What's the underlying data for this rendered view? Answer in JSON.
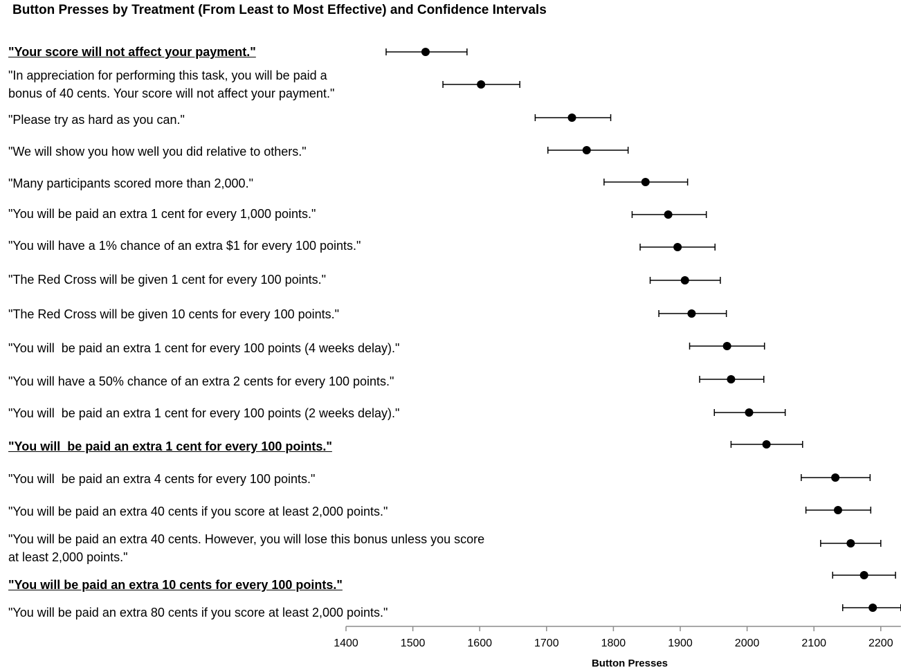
{
  "chart_data": {
    "type": "scatter",
    "title": "Button Presses by Treatment (From Least to Most Effective) and Confidence Intervals",
    "xlabel": "Button Presses",
    "xlim": [
      1400,
      2230
    ],
    "xticks": [
      "1400",
      "1500",
      "1600",
      "1700",
      "1800",
      "1900",
      "2000",
      "2100",
      "2200"
    ],
    "grid": false,
    "error_bars": true,
    "points": [
      {
        "label": "\"Your score will not affect your payment.\"",
        "bold": true,
        "x": 1519,
        "lo": 1460,
        "hi": 1581
      },
      {
        "label": "\"In appreciation for performing this task, you will be paid a\nbonus of 40 cents. Your score will not affect your payment.\"",
        "bold": false,
        "x": 1602,
        "lo": 1545,
        "hi": 1660
      },
      {
        "label": "\"Please try as hard as you can.\"",
        "bold": false,
        "x": 1738,
        "lo": 1683,
        "hi": 1796
      },
      {
        "label": "\"We will show you how well you did relative to others.\"",
        "bold": false,
        "x": 1760,
        "lo": 1702,
        "hi": 1822
      },
      {
        "label": "\"Many participants scored more than 2,000.\"",
        "bold": false,
        "x": 1848,
        "lo": 1786,
        "hi": 1911
      },
      {
        "label": "\"You will be paid an extra 1 cent for every 1,000 points.\"",
        "bold": false,
        "x": 1882,
        "lo": 1828,
        "hi": 1939
      },
      {
        "label": "\"You will have a 1% chance of an extra $1 for every 100 points.\"",
        "bold": false,
        "x": 1896,
        "lo": 1840,
        "hi": 1952
      },
      {
        "label": "\"The Red Cross will be given 1 cent for every 100 points.\"",
        "bold": false,
        "x": 1907,
        "lo": 1855,
        "hi": 1960
      },
      {
        "label": "\"The Red Cross will be given 10 cents for every 100 points.\"",
        "bold": false,
        "x": 1917,
        "lo": 1868,
        "hi": 1969
      },
      {
        "label": "\"You will  be paid an extra 1 cent for every 100 points (4 weeks delay).\"",
        "bold": false,
        "x": 1970,
        "lo": 1914,
        "hi": 2026
      },
      {
        "label": "\"You will have a 50% chance of an extra 2 cents for every 100 points.\"",
        "bold": false,
        "x": 1976,
        "lo": 1929,
        "hi": 2025
      },
      {
        "label": "\"You will  be paid an extra 1 cent for every 100 points (2 weeks delay).\"",
        "bold": false,
        "x": 2003,
        "lo": 1951,
        "hi": 2057
      },
      {
        "label": "\"You will  be paid an extra 1 cent for every 100 points.\"",
        "bold": true,
        "x": 2029,
        "lo": 1976,
        "hi": 2083
      },
      {
        "label": "\"You will  be paid an extra 4 cents for every 100 points.\"",
        "bold": false,
        "x": 2132,
        "lo": 2081,
        "hi": 2184
      },
      {
        "label": "\"You will be paid an extra 40 cents if you score at least 2,000 points.\"",
        "bold": false,
        "x": 2136,
        "lo": 2088,
        "hi": 2185
      },
      {
        "label": "\"You will be paid an extra 40 cents. However, you will lose this bonus unless you score\nat least 2,000 points.\"",
        "bold": false,
        "x": 2155,
        "lo": 2110,
        "hi": 2200
      },
      {
        "label": "\"You will be paid an extra 10 cents for every 100 points.\"",
        "bold": true,
        "x": 2175,
        "lo": 2128,
        "hi": 2222
      },
      {
        "label": "\"You will be paid an extra 80 cents if you score at least 2,000 points.\"",
        "bold": false,
        "x": 2188,
        "lo": 2143,
        "hi": 2230
      }
    ]
  }
}
